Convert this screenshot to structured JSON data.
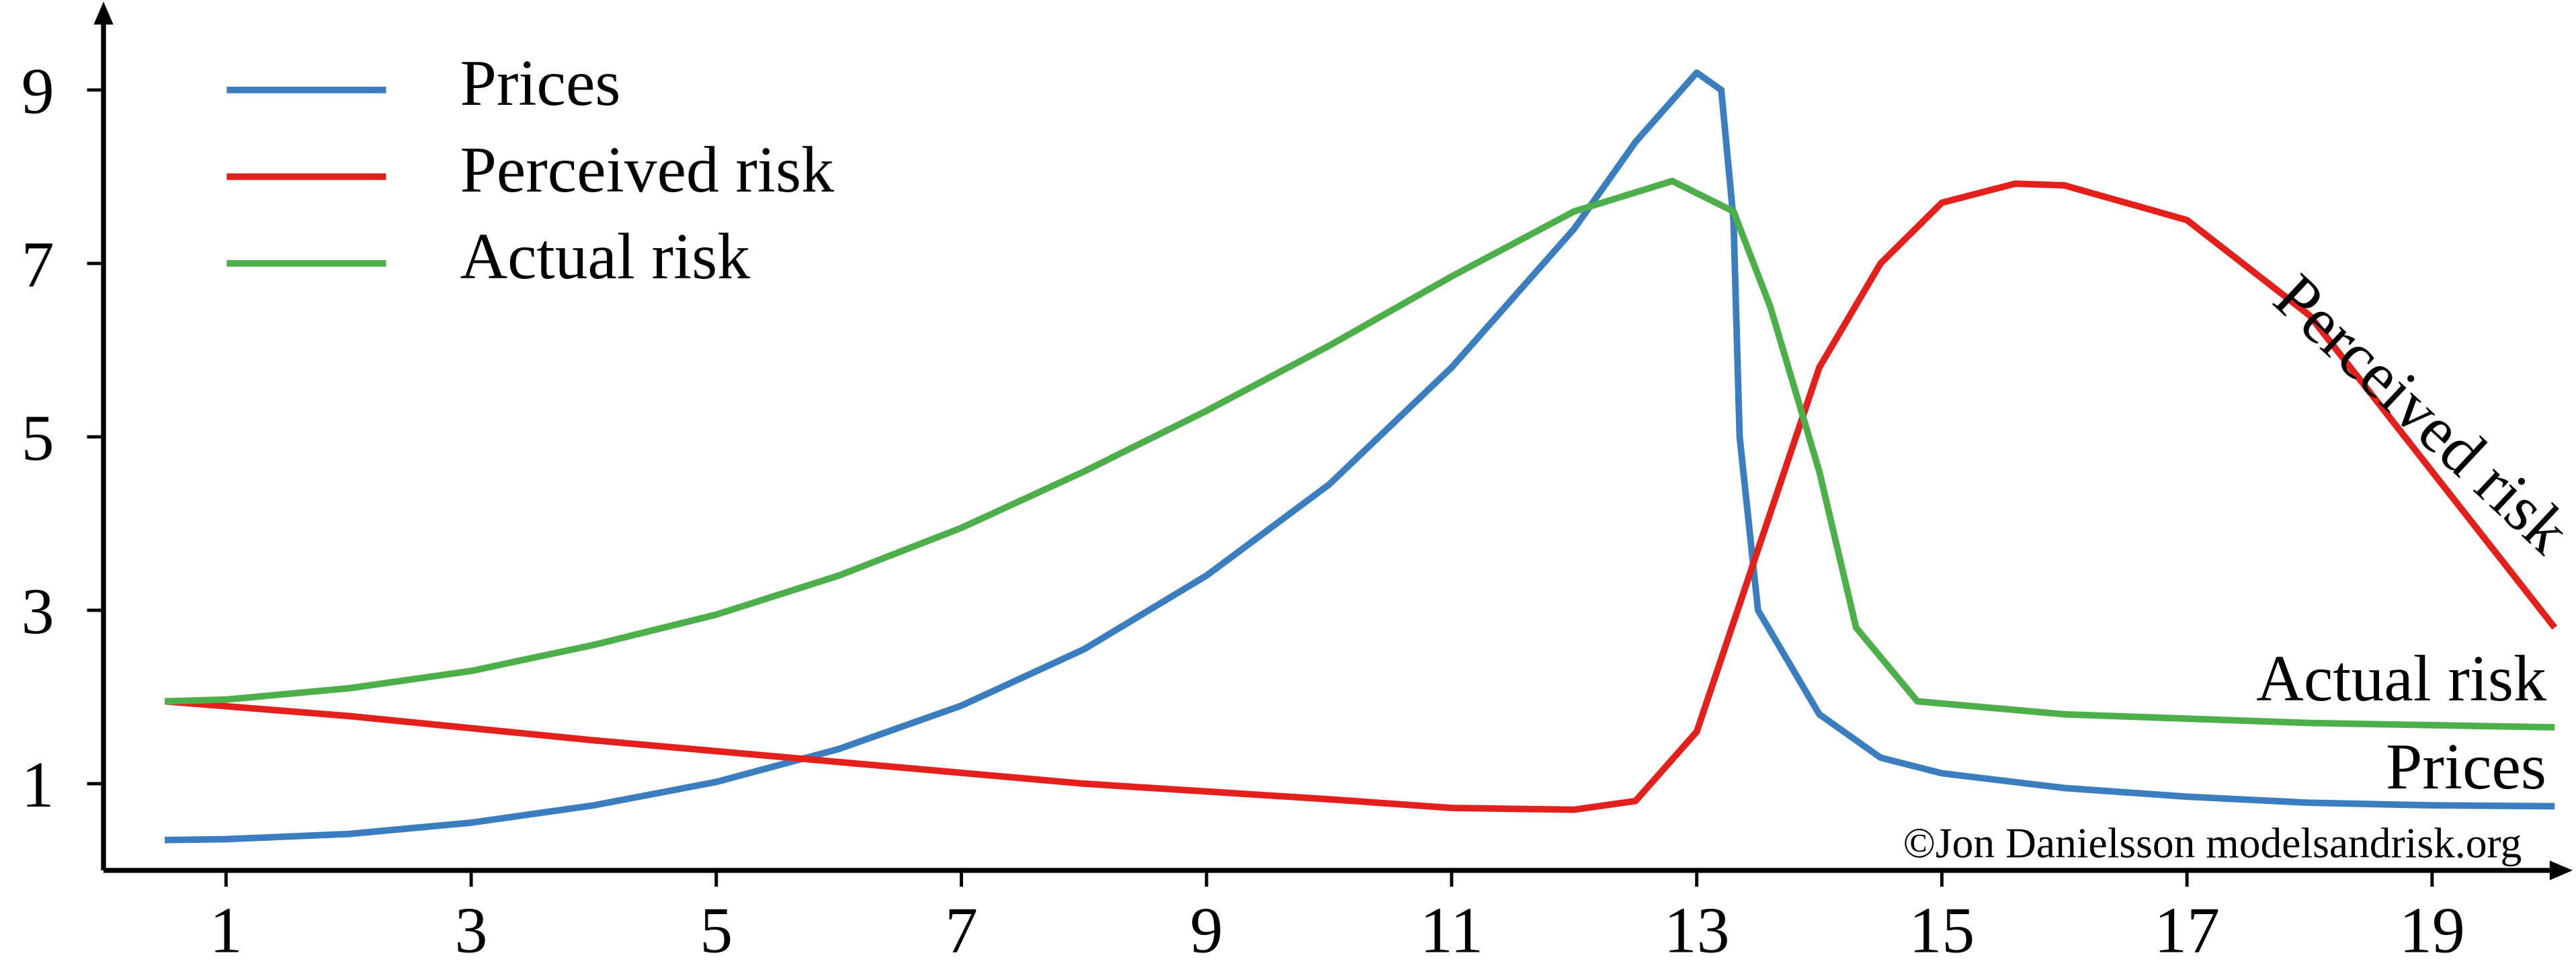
{
  "chart_data": {
    "type": "line",
    "xlim": [
      0,
      20
    ],
    "ylim": [
      0,
      10
    ],
    "xticks": [
      1,
      3,
      5,
      7,
      9,
      11,
      13,
      15,
      17,
      19
    ],
    "yticks": [
      1,
      3,
      5,
      7,
      9
    ],
    "legend": "upper left",
    "series": [
      {
        "name": "Prices",
        "color": "#3a7ebf",
        "x": [
          0.5,
          1,
          2,
          3,
          4,
          5,
          6,
          7,
          8,
          9,
          10,
          11,
          12,
          12.5,
          13,
          13.2,
          13.3,
          13.35,
          13.5,
          14,
          14.5,
          15,
          16,
          17,
          18,
          19,
          20
        ],
        "values": [
          0.35,
          0.36,
          0.42,
          0.55,
          0.75,
          1.02,
          1.4,
          1.9,
          2.55,
          3.4,
          4.45,
          5.8,
          7.4,
          8.4,
          9.2,
          9.0,
          7.5,
          5,
          3.0,
          1.8,
          1.3,
          1.12,
          0.95,
          0.85,
          0.78,
          0.75,
          0.74
        ]
      },
      {
        "name": "Perceived risk",
        "color": "#e3201b",
        "x": [
          0.5,
          2,
          4,
          6,
          8,
          10,
          11,
          12,
          12.5,
          13,
          13.5,
          14,
          14.5,
          15,
          15.6,
          16,
          17,
          18,
          19,
          20
        ],
        "values": [
          1.95,
          1.78,
          1.5,
          1.25,
          1.0,
          0.82,
          0.72,
          0.7,
          0.8,
          1.6,
          3.7,
          5.8,
          7.0,
          7.7,
          7.92,
          7.9,
          7.5,
          6.4,
          4.6,
          2.8
        ]
      },
      {
        "name": "Actual risk",
        "color": "#4daf4a",
        "x": [
          0.5,
          1,
          2,
          3,
          4,
          5,
          6,
          7,
          8,
          9,
          10,
          11,
          12,
          12.8,
          13.3,
          13.6,
          14,
          14.3,
          14.8,
          16,
          18,
          20
        ],
        "values": [
          1.95,
          1.97,
          2.1,
          2.3,
          2.6,
          2.95,
          3.4,
          3.95,
          4.6,
          5.3,
          6.05,
          6.85,
          7.6,
          7.95,
          7.6,
          6.5,
          4.6,
          2.8,
          1.95,
          1.8,
          1.7,
          1.65
        ]
      }
    ],
    "annotations": [
      "Perceived risk",
      "Actual risk",
      "Prices",
      "©Jon Danielsson modelsandrisk.org"
    ]
  }
}
